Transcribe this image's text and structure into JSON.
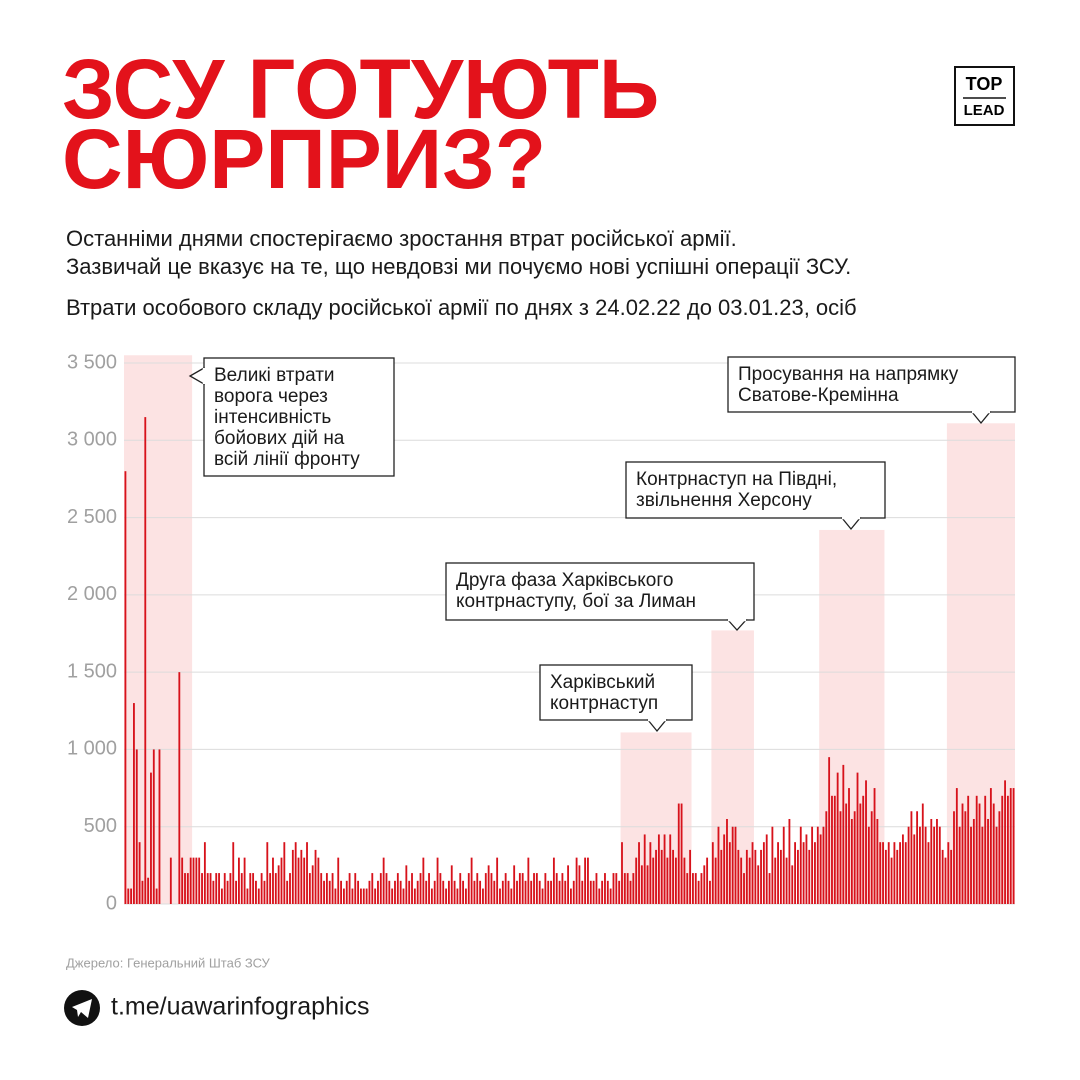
{
  "title_lines": [
    "ЗСУ ГОТУЮТЬ",
    "СЮРПРИЗ?"
  ],
  "logo": [
    "TOP",
    "LEAD"
  ],
  "subtitle_lines": [
    "Останніми днями спостерігаємо зростання втрат російської армії.",
    "Зазвичай це вказує на те, що невдовзі ми почуємо нові успішні операції ЗСУ."
  ],
  "chart_data": {
    "type": "bar",
    "title": "Втрати особового складу російської армії по днях з 24.02.22 до 03.01.23, осіб",
    "color": "#d7121b",
    "grid": true,
    "ylim": [
      0,
      3500
    ],
    "yticks": [
      0,
      {
        "value": 500,
        "label": "500"
      },
      {
        "value": 1000,
        "label": "1 000"
      },
      {
        "value": 1500,
        "label": "1 500"
      },
      {
        "value": 2000,
        "label": "2 000"
      },
      {
        "value": 2500,
        "label": "2 500"
      },
      {
        "value": 3000,
        "label": "3 000"
      },
      {
        "value": 3500,
        "label": "3 500"
      }
    ],
    "values": [
      2800,
      100,
      100,
      1300,
      1000,
      400,
      150,
      3150,
      170,
      850,
      1000,
      100,
      1000,
      null,
      null,
      null,
      300,
      null,
      null,
      1500,
      300,
      200,
      200,
      300,
      300,
      300,
      300,
      200,
      400,
      200,
      200,
      150,
      200,
      200,
      100,
      200,
      150,
      200,
      400,
      150,
      300,
      200,
      300,
      100,
      200,
      200,
      150,
      100,
      200,
      150,
      400,
      200,
      300,
      200,
      250,
      300,
      400,
      150,
      200,
      350,
      400,
      300,
      350,
      300,
      400,
      200,
      250,
      350,
      300,
      200,
      150,
      200,
      150,
      200,
      100,
      300,
      150,
      100,
      150,
      200,
      100,
      200,
      150,
      100,
      100,
      100,
      150,
      200,
      100,
      150,
      200,
      300,
      200,
      150,
      100,
      150,
      200,
      150,
      100,
      250,
      150,
      200,
      100,
      150,
      200,
      300,
      150,
      200,
      100,
      150,
      300,
      200,
      150,
      100,
      150,
      250,
      150,
      100,
      200,
      150,
      100,
      200,
      300,
      150,
      200,
      150,
      100,
      200,
      250,
      200,
      150,
      300,
      100,
      150,
      200,
      150,
      100,
      250,
      150,
      200,
      200,
      150,
      300,
      150,
      200,
      200,
      150,
      100,
      200,
      150,
      150,
      300,
      200,
      150,
      200,
      150,
      250,
      100,
      150,
      300,
      250,
      150,
      300,
      300,
      150,
      150,
      200,
      100,
      150,
      200,
      150,
      100,
      200,
      200,
      150,
      400,
      200,
      200,
      150,
      200,
      300,
      400,
      250,
      450,
      250,
      400,
      300,
      350,
      450,
      350,
      450,
      300,
      450,
      350,
      300,
      650,
      650,
      300,
      200,
      350,
      200,
      200,
      150,
      200,
      250,
      300,
      150,
      400,
      300,
      500,
      350,
      450,
      550,
      400,
      500,
      500,
      350,
      300,
      200,
      350,
      300,
      400,
      350,
      250,
      350,
      400,
      450,
      200,
      500,
      300,
      400,
      350,
      500,
      300,
      550,
      250,
      400,
      350,
      500,
      400,
      450,
      350,
      500,
      400,
      500,
      450,
      500,
      600,
      950,
      700,
      700,
      850,
      600,
      900,
      650,
      750,
      550,
      600,
      850,
      650,
      700,
      800,
      500,
      600,
      750,
      550,
      400,
      400,
      350,
      400,
      300,
      400,
      350,
      400,
      450,
      400,
      500,
      600,
      450,
      600,
      500,
      650,
      500,
      400,
      550,
      500,
      550,
      500,
      350,
      300,
      400,
      350,
      600,
      750,
      500,
      650,
      600,
      700,
      500,
      550,
      700,
      650,
      500,
      700,
      550,
      750,
      650,
      500,
      600,
      700,
      800,
      700,
      750,
      750
    ],
    "highlight_color": "#fce3e3",
    "annotations": [
      {
        "text": [
          "Великі втрати",
          "ворога через",
          "інтенсивність",
          "бойових дій на",
          "всій лінії фронту"
        ],
        "start": 0,
        "end": 23,
        "top": 3550
      },
      {
        "text": [
          "Харківський",
          "контрнаступ"
        ],
        "start": 175,
        "end": 199,
        "top": 1110
      },
      {
        "text": [
          "Друга фаза Харківського",
          "контрнаступу, бої за Лиман"
        ],
        "start": 207,
        "end": 221,
        "top": 1770
      },
      {
        "text": [
          "Контрнаступ на Півдні,",
          "звільнення Херсону"
        ],
        "start": 245,
        "end": 267,
        "top": 2420
      },
      {
        "text": [
          "Просування на напрямку",
          "Сватове-Кремінна"
        ],
        "start": 290,
        "end": 313,
        "top": 3110
      }
    ]
  },
  "source": "Джерело: Генеральний Штаб ЗСУ",
  "link": "t.me/uawarinfographics"
}
